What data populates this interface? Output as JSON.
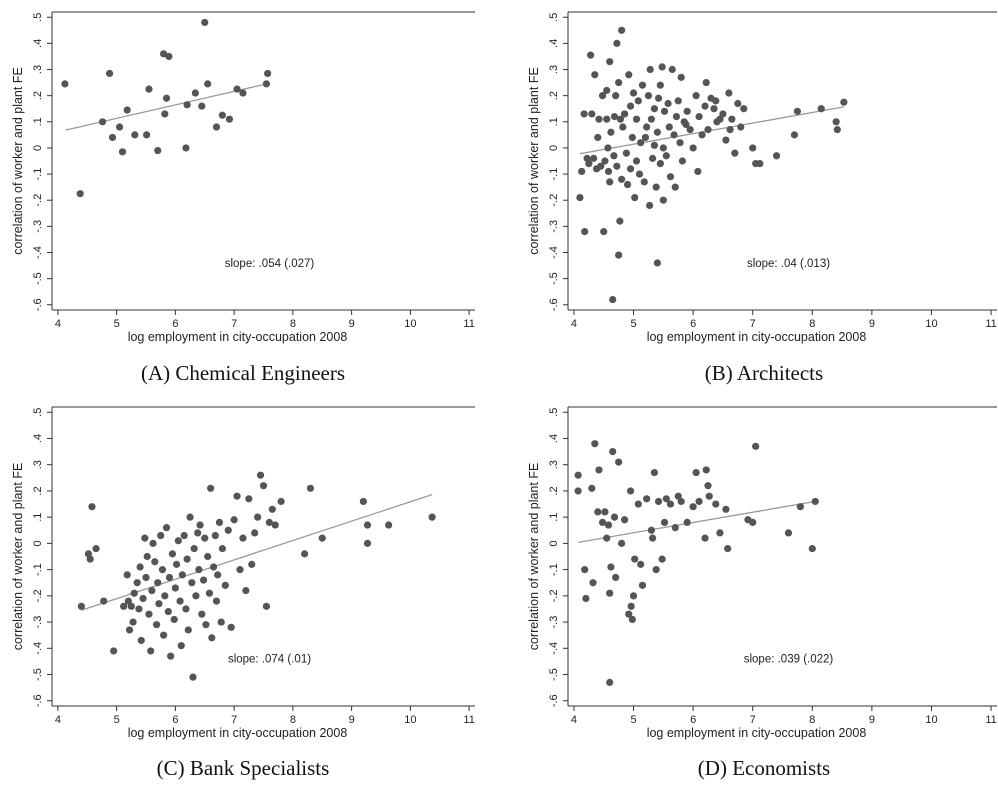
{
  "chart_data": [
    {
      "type": "scatter",
      "caption": "(A) Chemical Engineers",
      "xlabel": "log employment in city-occupation 2008",
      "ylabel": "correlation of worker and plant FE",
      "xlim": [
        3.9,
        11.1
      ],
      "ylim": [
        -0.62,
        0.52
      ],
      "xticks": [
        "4",
        "5",
        "6",
        "7",
        "8",
        "9",
        "10",
        "11"
      ],
      "yticks": [
        ".5",
        ".4",
        ".3",
        ".2",
        ".1",
        "0",
        "-.1",
        "-.2",
        "-.3",
        "-.4",
        "-.5",
        "-.6"
      ],
      "annotation": "slope: .054 (.027)",
      "fit_line": {
        "x": [
          4.13,
          7.57
        ],
        "y": [
          0.068,
          0.246
        ]
      },
      "points": [
        [
          4.12,
          0.245
        ],
        [
          4.38,
          -0.175
        ],
        [
          4.76,
          0.1
        ],
        [
          4.88,
          0.285
        ],
        [
          4.93,
          0.04
        ],
        [
          5.05,
          0.08
        ],
        [
          5.1,
          -0.015
        ],
        [
          5.18,
          0.145
        ],
        [
          5.31,
          0.05
        ],
        [
          5.51,
          0.05
        ],
        [
          5.55,
          0.225
        ],
        [
          5.7,
          -0.01
        ],
        [
          5.8,
          0.36
        ],
        [
          5.82,
          0.13
        ],
        [
          5.85,
          0.19
        ],
        [
          5.89,
          0.35
        ],
        [
          6.18,
          0.0
        ],
        [
          6.2,
          0.165
        ],
        [
          6.34,
          0.21
        ],
        [
          6.45,
          0.16
        ],
        [
          6.5,
          0.48
        ],
        [
          6.55,
          0.245
        ],
        [
          6.7,
          0.08
        ],
        [
          6.8,
          0.125
        ],
        [
          6.92,
          0.11
        ],
        [
          7.05,
          0.225
        ],
        [
          7.15,
          0.21
        ],
        [
          7.55,
          0.245
        ],
        [
          7.57,
          0.285
        ]
      ]
    },
    {
      "type": "scatter",
      "caption": "(B) Architects",
      "xlabel": "log employment in city-occupation 2008",
      "ylabel": "correlation of worker and plant FE",
      "xlim": [
        3.9,
        11.1
      ],
      "ylim": [
        -0.62,
        0.52
      ],
      "xticks": [
        "4",
        "5",
        "6",
        "7",
        "8",
        "9",
        "10",
        "11"
      ],
      "yticks": [
        ".5",
        ".4",
        ".3",
        ".2",
        ".1",
        "0",
        "-.1",
        "-.2",
        "-.3",
        "-.4",
        "-.5",
        "-.6"
      ],
      "annotation": "slope: .04 (.013)",
      "fit_line": {
        "x": [
          4.1,
          8.53
        ],
        "y": [
          -0.022,
          0.157
        ]
      },
      "points": [
        [
          4.1,
          -0.19
        ],
        [
          4.13,
          -0.09
        ],
        [
          4.17,
          0.13
        ],
        [
          4.18,
          -0.32
        ],
        [
          4.22,
          -0.04
        ],
        [
          4.25,
          -0.06
        ],
        [
          4.28,
          0.355
        ],
        [
          4.3,
          0.13
        ],
        [
          4.33,
          -0.04
        ],
        [
          4.35,
          0.28
        ],
        [
          4.38,
          -0.08
        ],
        [
          4.4,
          0.04
        ],
        [
          4.42,
          0.11
        ],
        [
          4.45,
          -0.07
        ],
        [
          4.48,
          0.2
        ],
        [
          4.5,
          -0.32
        ],
        [
          4.52,
          -0.05
        ],
        [
          4.55,
          0.11
        ],
        [
          4.55,
          0.22
        ],
        [
          4.57,
          0.0
        ],
        [
          4.58,
          -0.09
        ],
        [
          4.6,
          0.33
        ],
        [
          4.6,
          -0.13
        ],
        [
          4.62,
          0.06
        ],
        [
          4.65,
          -0.58
        ],
        [
          4.67,
          -0.03
        ],
        [
          4.68,
          0.12
        ],
        [
          4.7,
          0.2
        ],
        [
          4.72,
          0.4
        ],
        [
          4.72,
          -0.07
        ],
        [
          4.75,
          -0.41
        ],
        [
          4.75,
          0.25
        ],
        [
          4.77,
          -0.28
        ],
        [
          4.78,
          0.11
        ],
        [
          4.8,
          0.45
        ],
        [
          4.8,
          -0.12
        ],
        [
          4.82,
          0.08
        ],
        [
          4.85,
          0.13
        ],
        [
          4.88,
          -0.02
        ],
        [
          4.9,
          -0.14
        ],
        [
          4.92,
          0.28
        ],
        [
          4.95,
          0.16
        ],
        [
          4.95,
          -0.08
        ],
        [
          4.98,
          0.04
        ],
        [
          5.0,
          0.21
        ],
        [
          5.02,
          -0.19
        ],
        [
          5.05,
          -0.05
        ],
        [
          5.05,
          0.11
        ],
        [
          5.08,
          0.18
        ],
        [
          5.1,
          -0.1
        ],
        [
          5.12,
          0.02
        ],
        [
          5.15,
          0.24
        ],
        [
          5.18,
          -0.13
        ],
        [
          5.2,
          0.04
        ],
        [
          5.22,
          0.08
        ],
        [
          5.25,
          0.2
        ],
        [
          5.27,
          -0.22
        ],
        [
          5.28,
          0.3
        ],
        [
          5.3,
          0.11
        ],
        [
          5.32,
          -0.04
        ],
        [
          5.35,
          0.01
        ],
        [
          5.35,
          0.15
        ],
        [
          5.38,
          -0.15
        ],
        [
          5.4,
          -0.44
        ],
        [
          5.4,
          0.06
        ],
        [
          5.42,
          0.19
        ],
        [
          5.45,
          -0.06
        ],
        [
          5.45,
          0.24
        ],
        [
          5.48,
          0.31
        ],
        [
          5.5,
          0.0
        ],
        [
          5.5,
          -0.2
        ],
        [
          5.52,
          0.14
        ],
        [
          5.55,
          -0.03
        ],
        [
          5.58,
          0.17
        ],
        [
          5.6,
          0.08
        ],
        [
          5.62,
          -0.11
        ],
        [
          5.65,
          0.3
        ],
        [
          5.68,
          0.05
        ],
        [
          5.7,
          -0.15
        ],
        [
          5.72,
          0.12
        ],
        [
          5.75,
          0.18
        ],
        [
          5.78,
          0.02
        ],
        [
          5.8,
          0.27
        ],
        [
          5.82,
          -0.05
        ],
        [
          5.85,
          0.1
        ],
        [
          5.88,
          0.09
        ],
        [
          5.9,
          0.14
        ],
        [
          5.95,
          0.07
        ],
        [
          6.0,
          0.0
        ],
        [
          6.05,
          0.2
        ],
        [
          6.08,
          -0.09
        ],
        [
          6.1,
          0.12
        ],
        [
          6.15,
          0.05
        ],
        [
          6.2,
          0.16
        ],
        [
          6.22,
          0.25
        ],
        [
          6.25,
          0.07
        ],
        [
          6.3,
          0.19
        ],
        [
          6.35,
          0.15
        ],
        [
          6.38,
          0.18
        ],
        [
          6.4,
          0.1
        ],
        [
          6.45,
          0.11
        ],
        [
          6.5,
          0.13
        ],
        [
          6.55,
          0.03
        ],
        [
          6.6,
          0.21
        ],
        [
          6.62,
          0.07
        ],
        [
          6.65,
          0.11
        ],
        [
          6.7,
          -0.02
        ],
        [
          6.75,
          0.17
        ],
        [
          6.8,
          0.08
        ],
        [
          6.85,
          0.15
        ],
        [
          7.0,
          0.0
        ],
        [
          7.05,
          -0.06
        ],
        [
          7.12,
          -0.06
        ],
        [
          7.4,
          -0.03
        ],
        [
          7.7,
          0.05
        ],
        [
          7.75,
          0.14
        ],
        [
          8.15,
          0.15
        ],
        [
          8.4,
          0.1
        ],
        [
          8.42,
          0.07
        ],
        [
          8.53,
          0.175
        ]
      ]
    },
    {
      "type": "scatter",
      "caption": "(C) Bank Specialists",
      "xlabel": "log employment in city-occupation 2008",
      "ylabel": "correlation of worker and plant FE",
      "xlim": [
        3.9,
        11.1
      ],
      "ylim": [
        -0.62,
        0.52
      ],
      "xticks": [
        "4",
        "5",
        "6",
        "7",
        "8",
        "9",
        "10",
        "11"
      ],
      "yticks": [
        ".5",
        ".4",
        ".3",
        ".2",
        ".1",
        "0",
        "-.1",
        "-.2",
        "-.3",
        "-.4",
        "-.5",
        "-.6"
      ],
      "annotation": "slope: .074 (.01)",
      "fit_line": {
        "x": [
          4.4,
          10.37
        ],
        "y": [
          -0.255,
          0.186
        ]
      },
      "points": [
        [
          4.4,
          -0.24
        ],
        [
          4.52,
          -0.04
        ],
        [
          4.55,
          -0.06
        ],
        [
          4.58,
          0.14
        ],
        [
          4.65,
          -0.02
        ],
        [
          4.78,
          -0.22
        ],
        [
          4.95,
          -0.41
        ],
        [
          5.12,
          -0.24
        ],
        [
          5.18,
          -0.12
        ],
        [
          5.2,
          -0.22
        ],
        [
          5.22,
          -0.33
        ],
        [
          5.25,
          -0.24
        ],
        [
          5.28,
          -0.3
        ],
        [
          5.3,
          -0.19
        ],
        [
          5.35,
          -0.15
        ],
        [
          5.38,
          -0.25
        ],
        [
          5.4,
          -0.09
        ],
        [
          5.42,
          -0.37
        ],
        [
          5.45,
          -0.21
        ],
        [
          5.48,
          0.02
        ],
        [
          5.5,
          -0.13
        ],
        [
          5.52,
          -0.05
        ],
        [
          5.55,
          -0.27
        ],
        [
          5.58,
          -0.41
        ],
        [
          5.6,
          -0.18
        ],
        [
          5.62,
          0.0
        ],
        [
          5.65,
          -0.07
        ],
        [
          5.68,
          -0.31
        ],
        [
          5.7,
          -0.15
        ],
        [
          5.72,
          -0.23
        ],
        [
          5.75,
          0.03
        ],
        [
          5.78,
          -0.1
        ],
        [
          5.8,
          -0.35
        ],
        [
          5.82,
          -0.2
        ],
        [
          5.85,
          0.06
        ],
        [
          5.88,
          -0.26
        ],
        [
          5.9,
          -0.13
        ],
        [
          5.92,
          -0.43
        ],
        [
          5.95,
          -0.04
        ],
        [
          5.98,
          -0.29
        ],
        [
          6.0,
          -0.17
        ],
        [
          6.02,
          -0.08
        ],
        [
          6.05,
          0.01
        ],
        [
          6.08,
          -0.22
        ],
        [
          6.1,
          -0.39
        ],
        [
          6.12,
          -0.12
        ],
        [
          6.15,
          0.03
        ],
        [
          6.18,
          -0.25
        ],
        [
          6.2,
          -0.06
        ],
        [
          6.22,
          -0.33
        ],
        [
          6.25,
          0.1
        ],
        [
          6.28,
          -0.15
        ],
        [
          6.3,
          -0.51
        ],
        [
          6.32,
          -0.02
        ],
        [
          6.35,
          -0.2
        ],
        [
          6.38,
          0.04
        ],
        [
          6.4,
          -0.1
        ],
        [
          6.42,
          0.07
        ],
        [
          6.45,
          -0.27
        ],
        [
          6.48,
          -0.14
        ],
        [
          6.5,
          0.02
        ],
        [
          6.52,
          -0.31
        ],
        [
          6.55,
          -0.05
        ],
        [
          6.58,
          -0.19
        ],
        [
          6.6,
          0.21
        ],
        [
          6.62,
          -0.36
        ],
        [
          6.65,
          -0.09
        ],
        [
          6.68,
          0.03
        ],
        [
          6.7,
          -0.22
        ],
        [
          6.72,
          -0.12
        ],
        [
          6.75,
          0.08
        ],
        [
          6.78,
          -0.3
        ],
        [
          6.8,
          -0.02
        ],
        [
          6.85,
          -0.16
        ],
        [
          6.9,
          0.05
        ],
        [
          6.95,
          -0.32
        ],
        [
          7.0,
          0.09
        ],
        [
          7.05,
          0.18
        ],
        [
          7.1,
          -0.1
        ],
        [
          7.15,
          0.02
        ],
        [
          7.2,
          -0.18
        ],
        [
          7.25,
          0.17
        ],
        [
          7.3,
          -0.08
        ],
        [
          7.35,
          0.04
        ],
        [
          7.4,
          0.1
        ],
        [
          7.45,
          0.26
        ],
        [
          7.5,
          0.22
        ],
        [
          7.55,
          -0.24
        ],
        [
          7.6,
          0.08
        ],
        [
          7.65,
          0.13
        ],
        [
          7.7,
          0.07
        ],
        [
          7.8,
          0.16
        ],
        [
          8.2,
          -0.04
        ],
        [
          8.3,
          0.21
        ],
        [
          8.5,
          0.02
        ],
        [
          9.2,
          0.16
        ],
        [
          9.27,
          0.07
        ],
        [
          9.27,
          0.0
        ],
        [
          9.63,
          0.07
        ],
        [
          10.37,
          0.1
        ]
      ]
    },
    {
      "type": "scatter",
      "caption": "(D) Economists",
      "xlabel": "log employment in city-occupation 2008",
      "ylabel": "correlation of worker and plant FE",
      "xlim": [
        3.9,
        11.1
      ],
      "ylim": [
        -0.62,
        0.52
      ],
      "xticks": [
        "4",
        "5",
        "6",
        "7",
        "8",
        "9",
        "10",
        "11"
      ],
      "yticks": [
        ".5",
        ".4",
        ".3",
        ".2",
        ".1",
        "0",
        "-.1",
        "-.2",
        "-.3",
        "-.4",
        "-.5",
        "-.6"
      ],
      "annotation": "slope: .039 (.022)",
      "fit_line": {
        "x": [
          4.07,
          8.05
        ],
        "y": [
          0.004,
          0.16
        ]
      },
      "points": [
        [
          4.07,
          0.26
        ],
        [
          4.07,
          0.2
        ],
        [
          4.18,
          -0.1
        ],
        [
          4.2,
          -0.21
        ],
        [
          4.3,
          0.21
        ],
        [
          4.32,
          -0.15
        ],
        [
          4.35,
          0.38
        ],
        [
          4.4,
          0.12
        ],
        [
          4.42,
          0.28
        ],
        [
          4.48,
          0.08
        ],
        [
          4.52,
          0.12
        ],
        [
          4.55,
          0.02
        ],
        [
          4.58,
          0.07
        ],
        [
          4.6,
          -0.53
        ],
        [
          4.6,
          -0.19
        ],
        [
          4.62,
          -0.09
        ],
        [
          4.65,
          0.35
        ],
        [
          4.68,
          0.1
        ],
        [
          4.7,
          -0.13
        ],
        [
          4.75,
          0.31
        ],
        [
          4.8,
          0.0
        ],
        [
          4.85,
          0.09
        ],
        [
          4.92,
          -0.27
        ],
        [
          4.95,
          0.2
        ],
        [
          4.96,
          -0.24
        ],
        [
          4.98,
          -0.29
        ],
        [
          5.0,
          -0.2
        ],
        [
          5.02,
          -0.06
        ],
        [
          5.08,
          0.15
        ],
        [
          5.12,
          -0.08
        ],
        [
          5.15,
          -0.16
        ],
        [
          5.22,
          0.17
        ],
        [
          5.3,
          0.05
        ],
        [
          5.32,
          0.02
        ],
        [
          5.35,
          0.27
        ],
        [
          5.38,
          -0.1
        ],
        [
          5.42,
          0.16
        ],
        [
          5.48,
          -0.06
        ],
        [
          5.52,
          0.08
        ],
        [
          5.55,
          0.17
        ],
        [
          5.62,
          0.15
        ],
        [
          5.7,
          0.06
        ],
        [
          5.75,
          0.18
        ],
        [
          5.8,
          0.16
        ],
        [
          5.9,
          0.08
        ],
        [
          6.0,
          0.14
        ],
        [
          6.05,
          0.27
        ],
        [
          6.1,
          0.16
        ],
        [
          6.2,
          0.02
        ],
        [
          6.22,
          0.28
        ],
        [
          6.25,
          0.22
        ],
        [
          6.27,
          0.18
        ],
        [
          6.38,
          0.15
        ],
        [
          6.45,
          0.04
        ],
        [
          6.55,
          0.13
        ],
        [
          6.58,
          -0.02
        ],
        [
          6.92,
          0.09
        ],
        [
          7.0,
          0.08
        ],
        [
          7.05,
          0.37
        ],
        [
          7.6,
          0.04
        ],
        [
          7.8,
          0.14
        ],
        [
          8.0,
          -0.02
        ],
        [
          8.05,
          0.16
        ]
      ]
    }
  ]
}
